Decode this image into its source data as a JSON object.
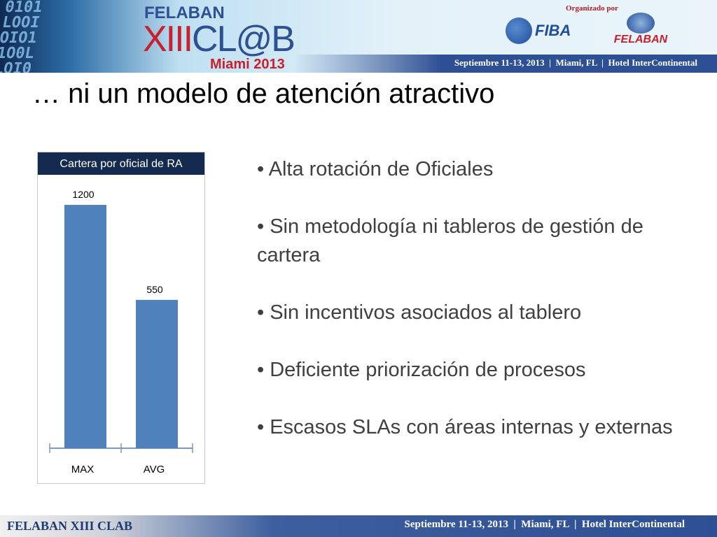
{
  "banner": {
    "logo_top": "FELABAN",
    "logo_main_x": "XIII",
    "logo_main_rest": "CL@B",
    "logo_city": "Miami 2013",
    "organized_by": "Organizado por",
    "partner1": "FIBA",
    "partner2": "FELABAN",
    "event_info": "Septiembre 11-13, 2013  |  Miami, FL  |  Hotel InterContinental"
  },
  "slide": {
    "title": "… ni un modelo de atención atractivo",
    "bullets": [
      "• Alta rotación de Oficiales",
      "• Sin metodología ni tableros de gestión de cartera",
      "• Sin incentivos asociados al tablero",
      "• Deficiente priorización de procesos",
      "• Escasos SLAs con áreas internas y externas"
    ]
  },
  "chart_data": {
    "type": "bar",
    "title": "Cartera por oficial de RA",
    "categories": [
      "MAX",
      "AVG"
    ],
    "values": [
      1200,
      550
    ],
    "data_labels": [
      "1200",
      "550"
    ],
    "xlabel": "",
    "ylabel": "",
    "ylim": [
      -465,
      1200
    ],
    "grid": false,
    "color": "#4f81bd"
  },
  "footer": {
    "left": "FELABAN XIII CLAB",
    "right": "Septiembre 11-13, 2013  |  Miami, FL  |  Hotel InterContinental"
  }
}
